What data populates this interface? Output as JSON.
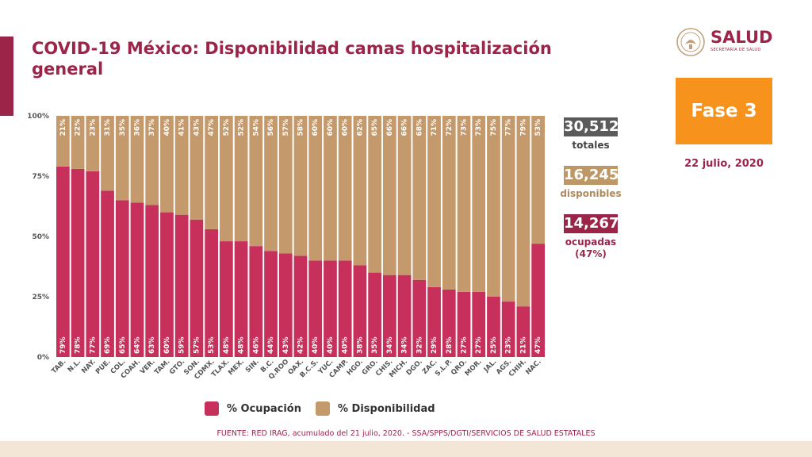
{
  "title": "COVID-19 México: Disponibilidad camas hospitalización general",
  "logo": {
    "text": "SALUD",
    "subtext": "SECRETARÍA DE SALUD"
  },
  "phase": "Fase 3",
  "date": "22 julio, 2020",
  "stats": {
    "total": {
      "value": "30,512",
      "label": "totales",
      "color": "#5b5b5b"
    },
    "available": {
      "value": "16,245",
      "label": "disponibles",
      "color": "#bd9766"
    },
    "occupied": {
      "value": "14,267",
      "label": "ocupadas",
      "label2": "(47%)",
      "color": "#9d2449"
    }
  },
  "legend": {
    "occupied": "% Ocupación",
    "available": "% Disponibilidad"
  },
  "source": "FUENTE: RED IRAG, acumulado del 21 julio, 2020. -  SSA/SPPS/DGTI/SERVICIOS DE SALUD ESTATALES",
  "colors": {
    "occupied": "#c6305a",
    "available": "#c49a6c",
    "accent": "#9d2449",
    "phase": "#f7931d"
  },
  "chart_data": {
    "type": "bar",
    "stacked": true,
    "categories": [
      "TAB.",
      "N.L.",
      "NAY.",
      "PUE.",
      "COL.",
      "COAH.",
      "VER.",
      "TAM.",
      "GTO.",
      "SON.",
      "CDMX.",
      "TLAX.",
      "MEX.",
      "SIN.",
      "B.C.",
      "Q.ROO",
      "OAX.",
      "B.C.S.",
      "YUC.",
      "CAMP.",
      "HGO.",
      "GRO.",
      "CHIS.",
      "MICH.",
      "DGO.",
      "ZAC.",
      "S.L.P.",
      "QRO.",
      "MOR.",
      "JAL.",
      "AGS.",
      "CHIH.",
      "NAC."
    ],
    "series": [
      {
        "name": "% Ocupación",
        "values": [
          79,
          78,
          77,
          69,
          65,
          64,
          63,
          60,
          59,
          57,
          53,
          48,
          48,
          46,
          44,
          43,
          42,
          40,
          40,
          40,
          38,
          35,
          34,
          34,
          32,
          29,
          28,
          27,
          27,
          25,
          23,
          21,
          47
        ],
        "labels": [
          "79%",
          "78%",
          "77%",
          "69%",
          "65%",
          "64%",
          "63%",
          "60%",
          "59%",
          "57%",
          "53%",
          "48%",
          "48%",
          "46%",
          "44%",
          "43%",
          "42%",
          "40%",
          "40%",
          "40%",
          "38%",
          "35%",
          "34%",
          "34%",
          "32%",
          "29%",
          "28%",
          "27%",
          "27%",
          "25%",
          "23%",
          "21%",
          "47%"
        ]
      },
      {
        "name": "% Disponibilidad",
        "values": [
          21,
          22,
          23,
          31,
          35,
          36,
          37,
          40,
          41,
          43,
          47,
          52,
          52,
          54,
          56,
          57,
          58,
          60,
          60,
          60,
          62,
          65,
          66,
          66,
          68,
          71,
          72,
          73,
          73,
          75,
          77,
          79,
          53
        ],
        "labels": [
          "21%",
          "22%",
          "23%",
          "31%",
          "35%",
          "36%",
          "37%",
          "40%",
          "41%",
          "43%",
          "47%",
          "52%",
          "52%",
          "54%",
          "56%",
          "57%",
          "58%",
          "60%",
          "60%",
          "60%",
          "62%",
          "65%",
          "66%",
          "66%",
          "68%",
          "71%",
          "72%",
          "73%",
          "73%",
          "75%",
          "77%",
          "79%",
          "53%"
        ]
      }
    ],
    "yticks": [
      "0%",
      "25%",
      "50%",
      "75%",
      "100%"
    ],
    "ylim": [
      0,
      100
    ],
    "grid": false
  }
}
